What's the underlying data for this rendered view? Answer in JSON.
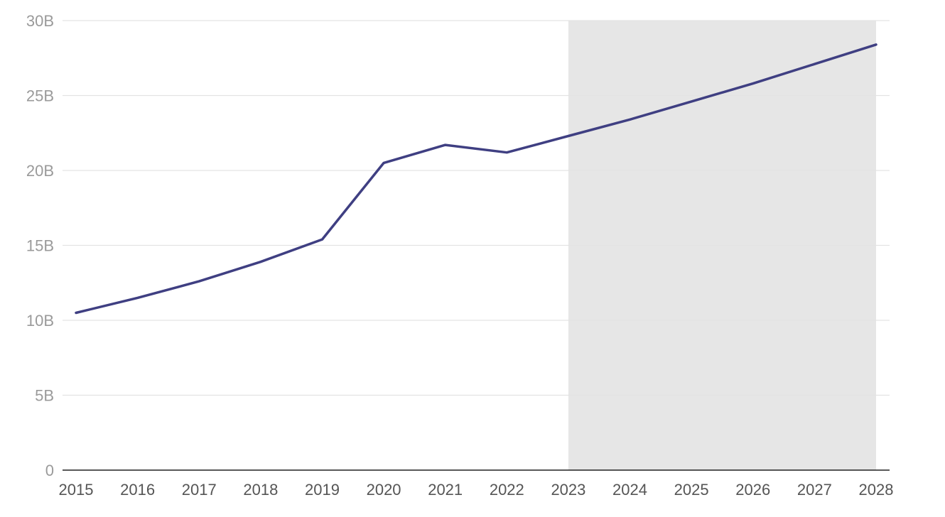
{
  "chart_data": {
    "type": "line",
    "title": "",
    "xlabel": "",
    "ylabel": "",
    "categories": [
      "2015",
      "2016",
      "2017",
      "2018",
      "2019",
      "2020",
      "2021",
      "2022",
      "2023",
      "2024",
      "2025",
      "2026",
      "2027",
      "2028"
    ],
    "series": [
      {
        "values": [
          10.5,
          11.5,
          12.6,
          13.9,
          15.4,
          20.5,
          21.7,
          21.2,
          22.3,
          23.4,
          24.6,
          25.8,
          27.1,
          28.4
        ],
        "color": "#3f3f82"
      }
    ],
    "ylim": [
      0,
      30
    ],
    "y_ticks": [
      {
        "value": 0,
        "label": "0"
      },
      {
        "value": 5,
        "label": "5B"
      },
      {
        "value": 10,
        "label": "10B"
      },
      {
        "value": 15,
        "label": "15B"
      },
      {
        "value": 20,
        "label": "20B"
      },
      {
        "value": 25,
        "label": "25B"
      },
      {
        "value": 30,
        "label": "30B"
      }
    ],
    "shaded_region": {
      "from": "2023",
      "to": "2028",
      "color": "#e6e6e6"
    },
    "grid": true,
    "legend": "none"
  }
}
